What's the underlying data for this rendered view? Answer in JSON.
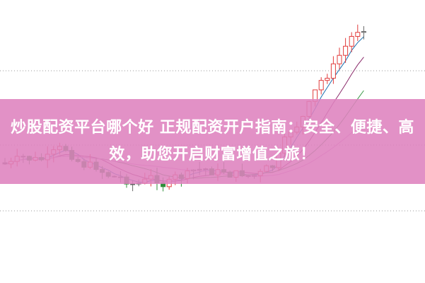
{
  "banner": {
    "title": "炒股配资平台哪个好 正规配资开户指南：安全、便捷、高效，助您开启财富增值之旅！"
  },
  "colors": {
    "up": "#e23b3b",
    "down": "#2f8f3a",
    "doji": "#666666",
    "banner": "#de82be",
    "ma1": "#1a6fb0",
    "ma2": "#8a2a6a",
    "ma3": "#3d9a4a",
    "ma4": "#d890d0"
  }
}
